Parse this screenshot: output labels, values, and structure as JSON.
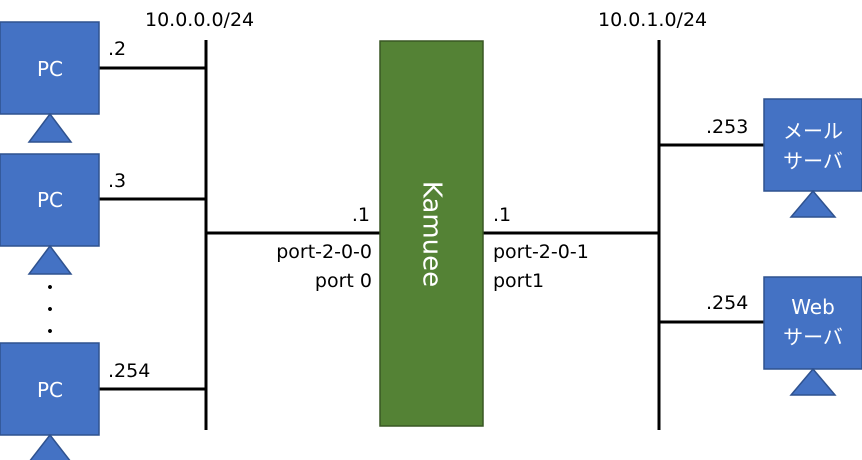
{
  "networks": {
    "left": {
      "cidr": "10.0.0.0/24"
    },
    "right": {
      "cidr": "10.0.1.0/24"
    }
  },
  "hosts": {
    "pc1": {
      "label": "PC",
      "addr": ".2"
    },
    "pc2": {
      "label": "PC",
      "addr": ".3"
    },
    "pc3": {
      "label": "PC",
      "addr": ".254"
    },
    "mail": {
      "line1": "メール",
      "line2": "サーバ",
      "addr": ".253"
    },
    "web": {
      "line1": "Web",
      "line2": "サーバ",
      "addr": ".254"
    }
  },
  "ellipsis": [
    "・",
    "・",
    "・"
  ],
  "router": {
    "name": "Kamuee",
    "left": {
      "addr": ".1",
      "port_id": "port-2-0-0",
      "port_name": "port 0"
    },
    "right": {
      "addr": ".1",
      "port_id": "port-2-0-1",
      "port_name": "port1"
    }
  },
  "colors": {
    "host_fill": "#4472c4",
    "host_stroke": "#2f528f",
    "router_fill": "#548235",
    "router_stroke": "#385723",
    "line": "#000000"
  }
}
